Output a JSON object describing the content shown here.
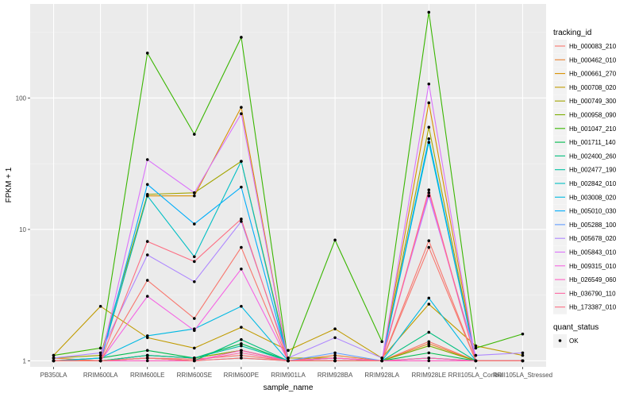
{
  "chart_data": {
    "type": "line",
    "title": "",
    "xlabel": "sample_name",
    "ylabel": "FPKM + 1",
    "y_scale": "log10",
    "ylim": [
      0.9,
      520
    ],
    "y_ticks": [
      1,
      10,
      100
    ],
    "y_tick_labels": [
      "1",
      "10",
      "100"
    ],
    "categories": [
      "PB350LA",
      "RRIM600LA",
      "RRIM600LE",
      "RRIM600SE",
      "RRIM600PE",
      "RRIM901LA",
      "RRIM928BA",
      "RRIM928LA",
      "RRIM928LE",
      "RRII105LA_Control",
      "RRII105LA_Stressed"
    ],
    "legend_title": "tracking_id",
    "legend_position": "right",
    "shape_legend": {
      "title": "quant_status",
      "entries": [
        "OK"
      ]
    },
    "series": [
      {
        "name": "Hb_000083_210",
        "color": "#F8766D",
        "values": [
          1.0,
          1.0,
          1.05,
          1.03,
          1.1,
          1.0,
          1.05,
          1.0,
          1.4,
          1.0,
          1.0
        ]
      },
      {
        "name": "Hb_000462_010",
        "color": "#EA8331",
        "values": [
          1.05,
          1.0,
          1.1,
          1.05,
          1.2,
          1.0,
          1.1,
          1.0,
          1.35,
          1.0,
          1.0
        ]
      },
      {
        "name": "Hb_000661_270",
        "color": "#D89000",
        "values": [
          1.0,
          1.0,
          18.0,
          18.0,
          85.0,
          1.0,
          1.05,
          1.0,
          92.0,
          1.0,
          1.0
        ]
      },
      {
        "name": "Hb_000708_020",
        "color": "#C09B00",
        "values": [
          1.1,
          2.6,
          1.5,
          1.25,
          1.8,
          1.2,
          1.75,
          1.05,
          2.7,
          1.3,
          1.1
        ]
      },
      {
        "name": "Hb_000749_300",
        "color": "#A3A500",
        "values": [
          1.05,
          1.1,
          18.5,
          19.0,
          33.0,
          1.05,
          1.05,
          1.0,
          60.0,
          1.0,
          1.0
        ]
      },
      {
        "name": "Hb_000958_090",
        "color": "#7CAE00",
        "values": [
          1.0,
          1.0,
          1.1,
          1.05,
          1.2,
          1.0,
          1.0,
          1.0,
          1.3,
          1.0,
          1.0
        ]
      },
      {
        "name": "Hb_001047_210",
        "color": "#39B600",
        "values": [
          1.1,
          1.25,
          220.0,
          53.0,
          290.0,
          1.0,
          8.3,
          1.4,
          450.0,
          1.25,
          1.6
        ]
      },
      {
        "name": "Hb_001711_140",
        "color": "#00BB4E",
        "values": [
          1.0,
          1.05,
          1.2,
          1.05,
          1.35,
          1.0,
          1.0,
          1.0,
          1.15,
          1.0,
          1.0
        ]
      },
      {
        "name": "Hb_002400_260",
        "color": "#00BF7D",
        "values": [
          1.0,
          1.0,
          1.05,
          1.0,
          1.45,
          1.0,
          1.0,
          1.0,
          1.65,
          1.0,
          1.0
        ]
      },
      {
        "name": "Hb_002477_190",
        "color": "#00C1A3",
        "values": [
          1.0,
          1.0,
          1.1,
          1.05,
          1.3,
          1.0,
          1.0,
          1.0,
          1.05,
          1.0,
          1.0
        ]
      },
      {
        "name": "Hb_002842_010",
        "color": "#00BFC4",
        "values": [
          1.0,
          1.0,
          18.0,
          6.2,
          33.0,
          1.0,
          1.0,
          1.0,
          46.0,
          1.0,
          1.0
        ]
      },
      {
        "name": "Hb_003008_020",
        "color": "#00B9E3",
        "values": [
          1.0,
          1.05,
          1.55,
          1.75,
          2.6,
          1.0,
          1.0,
          1.0,
          3.0,
          1.0,
          1.0
        ]
      },
      {
        "name": "Hb_005010_030",
        "color": "#00ADFA",
        "values": [
          1.0,
          1.0,
          22.0,
          11.0,
          21.0,
          1.0,
          1.0,
          1.0,
          49.0,
          1.0,
          1.0
        ]
      },
      {
        "name": "Hb_005288_100",
        "color": "#619CFF",
        "values": [
          1.0,
          1.0,
          1.05,
          1.0,
          1.05,
          1.0,
          1.15,
          1.0,
          1.05,
          1.0,
          1.0
        ]
      },
      {
        "name": "Hb_005678_020",
        "color": "#AE87FF",
        "values": [
          1.05,
          1.15,
          6.4,
          4.0,
          11.5,
          1.05,
          1.5,
          1.05,
          18.0,
          1.1,
          1.15
        ]
      },
      {
        "name": "Hb_005843_010",
        "color": "#DB72FB",
        "values": [
          1.0,
          1.0,
          34.0,
          19.0,
          76.0,
          1.0,
          1.05,
          1.0,
          128.0,
          1.0,
          1.0
        ]
      },
      {
        "name": "Hb_009315_010",
        "color": "#F564E3",
        "values": [
          1.0,
          1.0,
          3.1,
          1.7,
          5.0,
          1.0,
          1.0,
          1.0,
          19.0,
          1.0,
          1.0
        ]
      },
      {
        "name": "Hb_026549_060",
        "color": "#FF61C3",
        "values": [
          1.0,
          1.0,
          1.0,
          1.0,
          1.2,
          1.0,
          1.05,
          1.0,
          1.0,
          1.0,
          1.0
        ]
      },
      {
        "name": "Hb_036790_110",
        "color": "#FF67A4",
        "values": [
          1.0,
          1.0,
          1.05,
          1.0,
          1.15,
          1.0,
          1.0,
          1.0,
          1.05,
          1.0,
          1.0
        ]
      },
      {
        "name": "Hb_173387_010",
        "color": "#FD6E83",
        "values": [
          1.0,
          1.0,
          8.1,
          5.7,
          12.0,
          1.0,
          1.0,
          1.0,
          20.0,
          1.0,
          1.0
        ]
      }
    ],
    "extra_series_lines": [
      {
        "name": "Hb_000083_210",
        "values": [
          1.0,
          1.0,
          4.1,
          2.1,
          7.3,
          1.0,
          1.0,
          1.0,
          8.2,
          1.0,
          1.0
        ]
      },
      {
        "name": "Hb_000083_210",
        "values": [
          1.0,
          1.0,
          1.05,
          1.0,
          1.05,
          1.0,
          1.0,
          1.0,
          7.3,
          1.0,
          1.0
        ]
      }
    ]
  }
}
